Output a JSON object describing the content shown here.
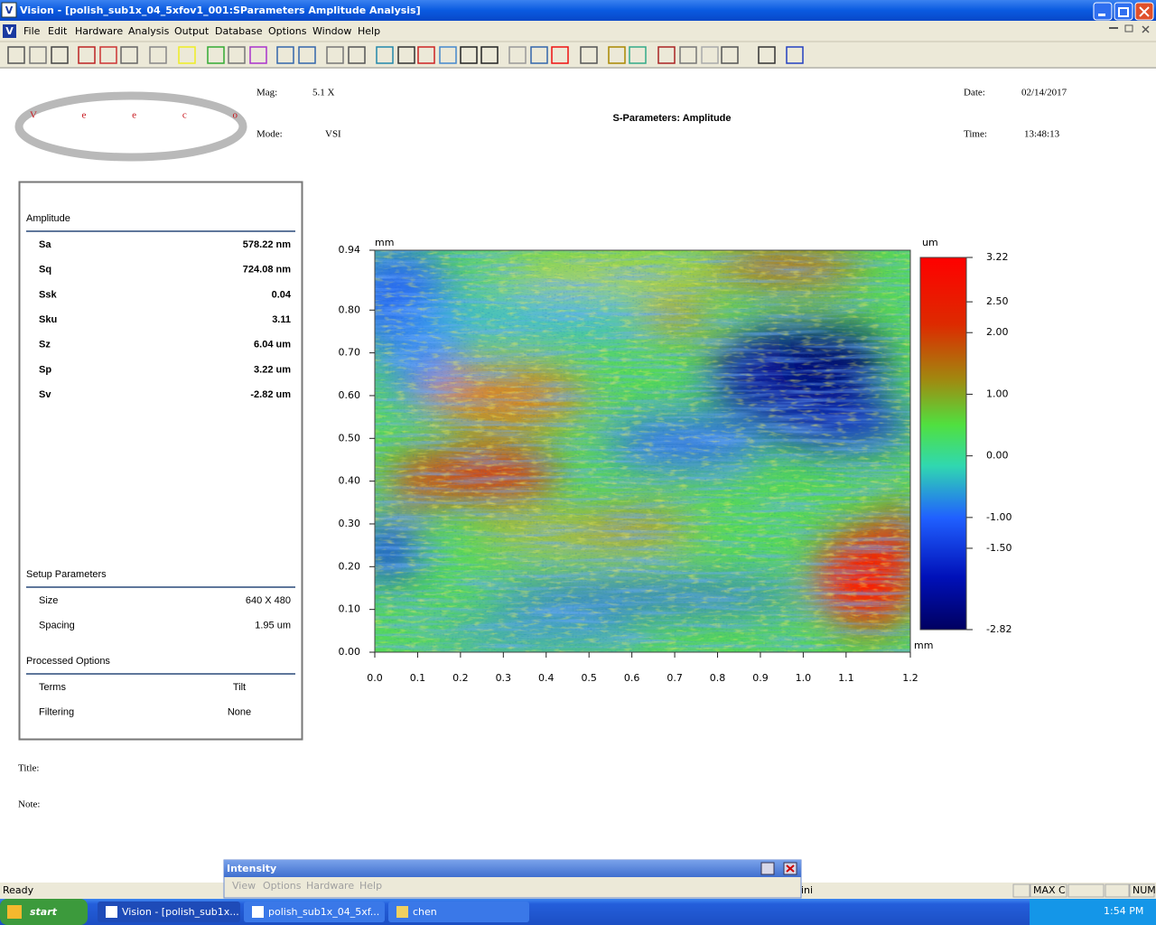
{
  "window": {
    "title": "Vision - [polish_sub1x_04_5xfov1_001:SParameters Amplitude Analysis]",
    "menu": [
      "File",
      "Edit",
      "Hardware",
      "Analysis",
      "Output",
      "Database",
      "Options",
      "Window",
      "Help"
    ]
  },
  "report": {
    "logo": "Veeco",
    "mag_label": "Mag:",
    "mag": "5.1 X",
    "mode_label": "Mode:",
    "mode": "VSI",
    "title": "S-Parameters: Amplitude",
    "date_label": "Date:",
    "date": "02/14/2017",
    "time_label": "Time:",
    "time": "13:48:13",
    "amplitude": {
      "heading": "Amplitude",
      "rows": [
        {
          "name": "Sa",
          "value": "578.22 nm"
        },
        {
          "name": "Sq",
          "value": "724.08 nm"
        },
        {
          "name": "Ssk",
          "value": "0.04"
        },
        {
          "name": "Sku",
          "value": "3.11"
        },
        {
          "name": "Sz",
          "value": "6.04 um"
        },
        {
          "name": "Sp",
          "value": "3.22 um"
        },
        {
          "name": "Sv",
          "value": "-2.82 um"
        }
      ]
    },
    "setup": {
      "heading": "Setup Parameters",
      "rows": [
        {
          "name": "Size",
          "value": "640 X 480"
        },
        {
          "name": "Spacing",
          "value": "1.95 um"
        }
      ]
    },
    "processed": {
      "heading": "Processed Options",
      "rows": [
        {
          "name": "Terms",
          "value": "Tilt"
        },
        {
          "name": "Filtering",
          "value": "None"
        }
      ]
    },
    "title_label": "Title:",
    "note_label": "Note:"
  },
  "map": {
    "x_unit": "mm",
    "y_unit": "mm",
    "xlim": [
      0,
      1.25
    ],
    "ylim": [
      0,
      0.94
    ],
    "xticks": [
      {
        "value": 0,
        "label": "0.0"
      },
      0.1,
      0.2,
      0.3,
      0.4,
      0.5,
      0.6,
      0.7,
      0.8,
      0.9,
      {
        "value": 1,
        "label": "1.0"
      },
      1.1,
      {
        "value": 1.25,
        "label": "1.2"
      }
    ],
    "yticks": [
      {
        "value": 0,
        "label": "0.00"
      },
      {
        "value": 0.1,
        "label": "0.10"
      },
      {
        "value": 0.2,
        "label": "0.20"
      },
      {
        "value": 0.3,
        "label": "0.30"
      },
      {
        "value": 0.4,
        "label": "0.40"
      },
      {
        "value": 0.5,
        "label": "0.50"
      },
      {
        "value": 0.6,
        "label": "0.60"
      },
      {
        "value": 0.7,
        "label": "0.70"
      },
      {
        "value": 0.8,
        "label": "0.80"
      },
      0.94
    ],
    "colorbar": {
      "unit": "um",
      "lim": [
        -2.82,
        3.22
      ],
      "ticks": [
        3.22,
        {
          "value": 2.5,
          "label": "2.50"
        },
        {
          "value": 2,
          "label": "2.00"
        },
        {
          "value": 1,
          "label": "1.00"
        },
        {
          "value": 0,
          "label": "0.00"
        },
        {
          "value": -1,
          "label": "-1.00"
        },
        {
          "value": -1.5,
          "label": "-1.50"
        },
        -2.82
      ]
    }
  },
  "intensity_window": {
    "title": "Intensity",
    "menu": [
      "View",
      "Options",
      "Hardware",
      "Help"
    ]
  },
  "status": {
    "text": "Ready",
    "fragment": "ini",
    "panels": [
      "MAX C",
      "NUM"
    ]
  },
  "taskbar": {
    "start": "start",
    "tasks": [
      "Vision - [polish_sub1x...",
      "polish_sub1x_04_5xf...",
      "chen"
    ],
    "clock": "1:54 PM"
  }
}
